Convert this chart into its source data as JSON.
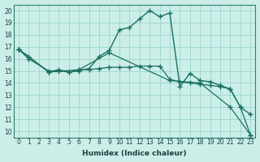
{
  "xlabel": "Humidex (Indice chaleur)",
  "bg_color": "#cceee8",
  "grid_color": "#99d5cc",
  "line_color": "#1a7060",
  "xlim": [
    -0.5,
    23.5
  ],
  "ylim": [
    9.5,
    20.5
  ],
  "xticks": [
    0,
    1,
    2,
    3,
    4,
    5,
    6,
    7,
    8,
    9,
    10,
    11,
    12,
    13,
    14,
    15,
    16,
    17,
    18,
    19,
    20,
    21,
    22,
    23
  ],
  "yticks": [
    10,
    11,
    12,
    13,
    14,
    15,
    16,
    17,
    18,
    19,
    20
  ],
  "line1_x": [
    0,
    1,
    3,
    4,
    5,
    6,
    7,
    8,
    9,
    10,
    11,
    12,
    13,
    14,
    15,
    16,
    17,
    18,
    19,
    20,
    21,
    22,
    23
  ],
  "line1_y": [
    16.8,
    16.2,
    14.9,
    15.1,
    14.9,
    15.0,
    15.2,
    16.2,
    16.7,
    18.4,
    18.6,
    19.3,
    20.0,
    19.5,
    19.8,
    13.7,
    14.8,
    14.2,
    14.1,
    13.8,
    13.5,
    12.0,
    11.4
  ],
  "line2_x": [
    0,
    1,
    3,
    4,
    5,
    6,
    7,
    8,
    9,
    10,
    11,
    12,
    13,
    14,
    15,
    16,
    17,
    18,
    19,
    20,
    21,
    22,
    23
  ],
  "line2_y": [
    16.8,
    16.0,
    15.0,
    15.0,
    14.9,
    15.1,
    15.1,
    15.2,
    15.3,
    15.3,
    15.3,
    15.4,
    15.4,
    15.4,
    14.3,
    14.1,
    14.0,
    13.9,
    13.8,
    13.7,
    13.5,
    12.0,
    9.7
  ],
  "line3_x": [
    0,
    3,
    6,
    9,
    15,
    18,
    21,
    23
  ],
  "line3_y": [
    16.8,
    14.9,
    15.1,
    16.5,
    14.2,
    14.0,
    12.0,
    9.7
  ]
}
